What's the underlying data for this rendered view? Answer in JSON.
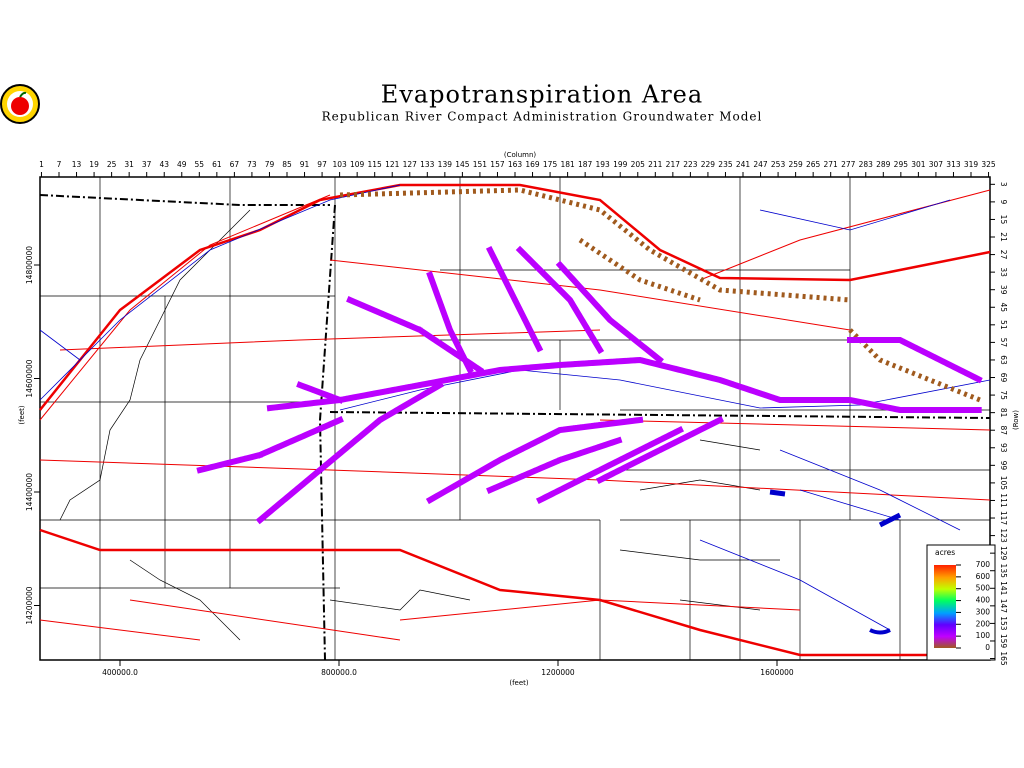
{
  "title": "Evapotranspiration Area",
  "subtitle": "Republican River Compact Administration Groundwater Model",
  "column_axis": {
    "label": "(Column)",
    "ticks": [
      1,
      7,
      13,
      19,
      25,
      31,
      37,
      43,
      49,
      55,
      61,
      67,
      73,
      79,
      85,
      91,
      97,
      103,
      109,
      115,
      121,
      127,
      133,
      139,
      145,
      151,
      157,
      163,
      169,
      175,
      181,
      187,
      193,
      199,
      205,
      211,
      217,
      223,
      229,
      235,
      241,
      247,
      253,
      259,
      265,
      271,
      277,
      283,
      289,
      295,
      301,
      307,
      313,
      319,
      325
    ]
  },
  "row_axis": {
    "label": "(Row)",
    "ticks": [
      3,
      9,
      15,
      21,
      27,
      33,
      39,
      45,
      51,
      57,
      63,
      69,
      75,
      81,
      87,
      93,
      99,
      105,
      111,
      117,
      123,
      129,
      135,
      141,
      147,
      153,
      159,
      165
    ]
  },
  "x_axis": {
    "label": "(feet)",
    "ticks": [
      {
        "value": 400000,
        "label": "400000.0"
      },
      {
        "value": 800000,
        "label": "800000.0"
      },
      1200000,
      1600000
    ]
  },
  "y_axis": {
    "label": "(feet)",
    "ticks": [
      14800000,
      14600000,
      14400000,
      14200000
    ]
  },
  "legend": {
    "title": "acres",
    "ticks": [
      700,
      600,
      500,
      400,
      300,
      200,
      100,
      0
    ]
  }
}
